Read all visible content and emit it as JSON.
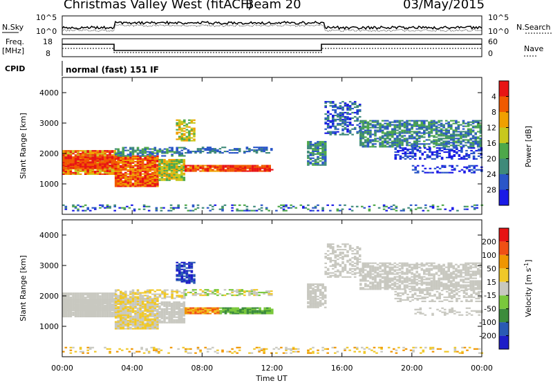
{
  "header": {
    "station": "Christmas Valley West (fitACF)",
    "beam": "Beam 20",
    "date": "03/May/2015"
  },
  "noise_panel": {
    "left_label": "N.Sky",
    "right_label": "N.Search",
    "yticks": [
      "10^5",
      "10^0"
    ]
  },
  "freq_panel": {
    "left_label_1": "Freq.",
    "left_label_2": "[MHz]",
    "left_ticks": [
      "18",
      "8"
    ],
    "right_label": "Nave",
    "right_ticks": [
      "60",
      "0"
    ]
  },
  "cpid": {
    "label": "CPID",
    "value": "normal (fast) 151 IF"
  },
  "chart_data": [
    {
      "type": "heatmap",
      "name_on_axis": "Power",
      "ylabel": "Slant Range [km]",
      "ylim": [
        0,
        4500
      ],
      "yticks": [
        1000,
        2000,
        3000,
        4000
      ],
      "xlim_hours": [
        0,
        24
      ],
      "colorbar": {
        "label": "Power [dB]",
        "ticks": [
          "4",
          "8",
          "12",
          "16",
          "20",
          "24",
          "28"
        ],
        "colors": [
          "#1a1ae6",
          "#2a56c8",
          "#3f8a7a",
          "#4ea84a",
          "#c8c81e",
          "#f0a000",
          "#f05a00",
          "#e81414"
        ]
      }
    },
    {
      "type": "heatmap",
      "name_on_axis": "Velocity",
      "ylabel": "Slant Range [km]",
      "ylim": [
        0,
        4500
      ],
      "yticks": [
        1000,
        2000,
        3000,
        4000
      ],
      "xlim_hours": [
        0,
        24
      ],
      "colorbar": {
        "label": "Velocity [m s-1]",
        "label_main": "Velocity [m s",
        "label_sup": "-1",
        "label_end": "]",
        "ticks": [
          "200",
          "100",
          "50",
          "15",
          "-15",
          "-50",
          "-100",
          "-200"
        ],
        "colors": [
          "#1e1ec8",
          "#2a5ab4",
          "#3c8c3c",
          "#7ac83c",
          "#c8c8c0",
          "#f0c828",
          "#f09600",
          "#f05014",
          "#e61414"
        ]
      }
    }
  ],
  "x_axis": {
    "ticks": [
      "00:00",
      "04:00",
      "08:00",
      "12:00",
      "16:00",
      "20:00",
      "00:00"
    ],
    "label": "Time UT"
  }
}
